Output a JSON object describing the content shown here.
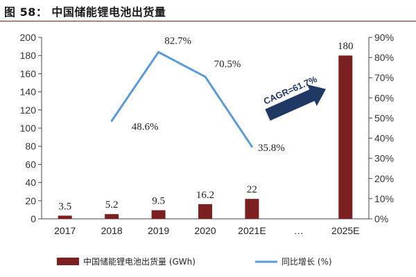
{
  "figure": {
    "title": "图 58： 中国储能锂电池出货量"
  },
  "chart_data": {
    "type": "bar+line",
    "categories": [
      "2017",
      "2018",
      "2019",
      "2020",
      "2021E",
      "…",
      "2025E"
    ],
    "series": [
      {
        "name": "中国储能锂电池出货量 (GWh)",
        "type": "bar",
        "axis": "left",
        "color": "#7b2020",
        "values": [
          3.5,
          5.2,
          9.5,
          16.2,
          22,
          null,
          180
        ],
        "labels": [
          "3.5",
          "5.2",
          "9.5",
          "16.2",
          "22",
          "",
          "180"
        ]
      },
      {
        "name": "同比增长 (%)",
        "type": "line",
        "axis": "right",
        "color": "#5b9bd5",
        "values": [
          null,
          48.6,
          82.7,
          70.5,
          35.8,
          null,
          null
        ],
        "labels": [
          "",
          "48.6%",
          "82.7%",
          "70.5%",
          "35.8%",
          "",
          ""
        ]
      }
    ],
    "y_left": {
      "min": 0,
      "max": 200,
      "step": 20,
      "ticks": [
        "0",
        "20",
        "40",
        "60",
        "80",
        "100",
        "120",
        "140",
        "160",
        "180",
        "200"
      ]
    },
    "y_right": {
      "min": 0,
      "max": 90,
      "step": 10,
      "ticks": [
        "0%",
        "10%",
        "20%",
        "30%",
        "40%",
        "50%",
        "60%",
        "70%",
        "80%",
        "90%"
      ]
    },
    "annotation": {
      "text": "CAGR=61.7%",
      "arrow_color": "#1f3864"
    },
    "legend": {
      "position": "bottom",
      "items": [
        "中国储能锂电池出货量 (GWh)",
        "同比增长 (%)"
      ]
    }
  }
}
